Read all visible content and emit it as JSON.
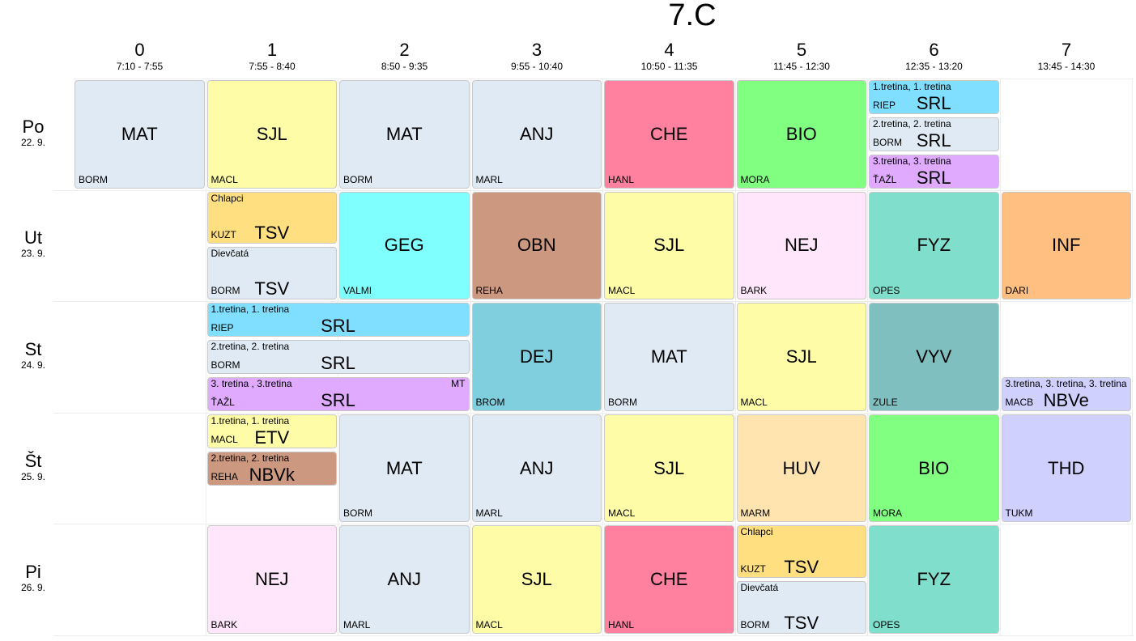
{
  "title": "7.C",
  "periods": [
    {
      "num": "0",
      "time": "7:10 - 7:55"
    },
    {
      "num": "1",
      "time": "7:55 - 8:40"
    },
    {
      "num": "2",
      "time": "8:50 - 9:35"
    },
    {
      "num": "3",
      "time": "9:55 - 10:40"
    },
    {
      "num": "4",
      "time": "10:50 - 11:35"
    },
    {
      "num": "5",
      "time": "11:45 - 12:30"
    },
    {
      "num": "6",
      "time": "12:35 - 13:20"
    },
    {
      "num": "7",
      "time": "13:45 - 14:30"
    }
  ],
  "days": [
    {
      "name": "Po",
      "date": "22. 9."
    },
    {
      "name": "Ut",
      "date": "23. 9."
    },
    {
      "name": "St",
      "date": "24. 9."
    },
    {
      "name": "Št",
      "date": "25. 9."
    },
    {
      "name": "Pi",
      "date": "26. 9."
    }
  ],
  "colors": {
    "MAT": "#dfeaf4",
    "SJL": "#fffca8",
    "ANJ": "#dfeaf4",
    "CHE": "#ff809f",
    "BIO": "#80ff80",
    "SRL_1": "#80dfff",
    "SRL_2": "#dfeaf4",
    "SRL_3": "#dfaaff",
    "TSV_CH": "#ffdf80",
    "TSV_D": "#dfeaf4",
    "GEG": "#80ffff",
    "OBN": "#cc9980",
    "NEJ": "#ffe6fa",
    "FYZ": "#80dfcc",
    "INF": "#ffbf80",
    "DEJ": "#80cfdf",
    "VYV": "#80bfbf",
    "NBVe": "#d0d0ff",
    "ETV": "#fffca8",
    "NBVk": "#cc9980",
    "HUV": "#ffe4b0",
    "THD": "#d0d0ff"
  },
  "lessons": [
    {
      "day": 0,
      "period": 0,
      "span": 1,
      "part": 0,
      "parts": 1,
      "subject": "MAT",
      "teacher": "BORM",
      "color": "#dfeaf4"
    },
    {
      "day": 0,
      "period": 1,
      "span": 1,
      "part": 0,
      "parts": 1,
      "subject": "SJL",
      "teacher": "MACL",
      "color": "#fffca8"
    },
    {
      "day": 0,
      "period": 2,
      "span": 1,
      "part": 0,
      "parts": 1,
      "subject": "MAT",
      "teacher": "BORM",
      "color": "#dfeaf4"
    },
    {
      "day": 0,
      "period": 3,
      "span": 1,
      "part": 0,
      "parts": 1,
      "subject": "ANJ",
      "teacher": "MARL",
      "color": "#dfeaf4"
    },
    {
      "day": 0,
      "period": 4,
      "span": 1,
      "part": 0,
      "parts": 1,
      "subject": "CHE",
      "teacher": "HANL",
      "color": "#ff809f"
    },
    {
      "day": 0,
      "period": 5,
      "span": 1,
      "part": 0,
      "parts": 1,
      "subject": "BIO",
      "teacher": "MORA",
      "color": "#80ff80"
    },
    {
      "day": 0,
      "period": 6,
      "span": 1,
      "part": 0,
      "parts": 3,
      "subject": "SRL",
      "teacher": "RIEP",
      "group": "1.tretina, 1. tretina",
      "color": "#80dfff"
    },
    {
      "day": 0,
      "period": 6,
      "span": 1,
      "part": 1,
      "parts": 3,
      "subject": "SRL",
      "teacher": "BORM",
      "group": "2.tretina, 2. tretina",
      "color": "#dfeaf4"
    },
    {
      "day": 0,
      "period": 6,
      "span": 1,
      "part": 2,
      "parts": 3,
      "subject": "SRL",
      "teacher": "ŤAŽL",
      "group": "3.tretina, 3. tretina",
      "color": "#dfaaff"
    },
    {
      "day": 1,
      "period": 1,
      "span": 1,
      "part": 0,
      "parts": 2,
      "subject": "TSV",
      "teacher": "KUZT",
      "group": "Chlapci",
      "color": "#ffdf80"
    },
    {
      "day": 1,
      "period": 1,
      "span": 1,
      "part": 1,
      "parts": 2,
      "subject": "TSV",
      "teacher": "BORM",
      "group": "Dievčatá",
      "color": "#dfeaf4"
    },
    {
      "day": 1,
      "period": 2,
      "span": 1,
      "part": 0,
      "parts": 1,
      "subject": "GEG",
      "teacher": "VALMI",
      "color": "#80ffff"
    },
    {
      "day": 1,
      "period": 3,
      "span": 1,
      "part": 0,
      "parts": 1,
      "subject": "OBN",
      "teacher": "REHA",
      "color": "#cc9980"
    },
    {
      "day": 1,
      "period": 4,
      "span": 1,
      "part": 0,
      "parts": 1,
      "subject": "SJL",
      "teacher": "MACL",
      "color": "#fffca8"
    },
    {
      "day": 1,
      "period": 5,
      "span": 1,
      "part": 0,
      "parts": 1,
      "subject": "NEJ",
      "teacher": "BARK",
      "color": "#ffe6fa"
    },
    {
      "day": 1,
      "period": 6,
      "span": 1,
      "part": 0,
      "parts": 1,
      "subject": "FYZ",
      "teacher": "OPES",
      "color": "#80dfcc"
    },
    {
      "day": 1,
      "period": 7,
      "span": 1,
      "part": 0,
      "parts": 1,
      "subject": "INF",
      "teacher": "DARI",
      "color": "#ffbf80"
    },
    {
      "day": 2,
      "period": 1,
      "span": 2,
      "part": 0,
      "parts": 3,
      "subject": "SRL",
      "teacher": "RIEP",
      "group": "1.tretina, 1. tretina",
      "color": "#80dfff"
    },
    {
      "day": 2,
      "period": 1,
      "span": 2,
      "part": 1,
      "parts": 3,
      "subject": "SRL",
      "teacher": "BORM",
      "group": "2.tretina, 2. tretina",
      "color": "#dfeaf4"
    },
    {
      "day": 2,
      "period": 1,
      "span": 2,
      "part": 2,
      "parts": 3,
      "subject": "SRL",
      "teacher": "ŤAŽL",
      "group": "3. tretina , 3.tretina",
      "room": "MT",
      "color": "#dfaaff"
    },
    {
      "day": 2,
      "period": 3,
      "span": 1,
      "part": 0,
      "parts": 1,
      "subject": "DEJ",
      "teacher": "BROM",
      "color": "#80cfdf"
    },
    {
      "day": 2,
      "period": 4,
      "span": 1,
      "part": 0,
      "parts": 1,
      "subject": "MAT",
      "teacher": "BORM",
      "color": "#dfeaf4"
    },
    {
      "day": 2,
      "period": 5,
      "span": 1,
      "part": 0,
      "parts": 1,
      "subject": "SJL",
      "teacher": "MACL",
      "color": "#fffca8"
    },
    {
      "day": 2,
      "period": 6,
      "span": 1,
      "part": 0,
      "parts": 1,
      "subject": "VYV",
      "teacher": "ZULE",
      "color": "#80bfbf"
    },
    {
      "day": 2,
      "period": 7,
      "span": 1,
      "part": 2,
      "parts": 3,
      "subject": "NBVe",
      "teacher": "MACB",
      "group": "3.tretina, 3. tretina, 3. tretina",
      "color": "#d0d0ff"
    },
    {
      "day": 3,
      "period": 1,
      "span": 1,
      "part": 0,
      "parts": 3,
      "subject": "ETV",
      "teacher": "MACL",
      "group": "1.tretina, 1. tretina",
      "color": "#fffca8"
    },
    {
      "day": 3,
      "period": 1,
      "span": 1,
      "part": 1,
      "parts": 3,
      "subject": "NBVk",
      "teacher": "REHA",
      "group": "2.tretina, 2. tretina",
      "color": "#cc9980"
    },
    {
      "day": 3,
      "period": 2,
      "span": 1,
      "part": 0,
      "parts": 1,
      "subject": "MAT",
      "teacher": "BORM",
      "color": "#dfeaf4"
    },
    {
      "day": 3,
      "period": 3,
      "span": 1,
      "part": 0,
      "parts": 1,
      "subject": "ANJ",
      "teacher": "MARL",
      "color": "#dfeaf4"
    },
    {
      "day": 3,
      "period": 4,
      "span": 1,
      "part": 0,
      "parts": 1,
      "subject": "SJL",
      "teacher": "MACL",
      "color": "#fffca8"
    },
    {
      "day": 3,
      "period": 5,
      "span": 1,
      "part": 0,
      "parts": 1,
      "subject": "HUV",
      "teacher": "MARM",
      "color": "#ffe4b0"
    },
    {
      "day": 3,
      "period": 6,
      "span": 1,
      "part": 0,
      "parts": 1,
      "subject": "BIO",
      "teacher": "MORA",
      "color": "#80ff80"
    },
    {
      "day": 3,
      "period": 7,
      "span": 1,
      "part": 0,
      "parts": 1,
      "subject": "THD",
      "teacher": "TUKM",
      "color": "#d0d0ff"
    },
    {
      "day": 4,
      "period": 1,
      "span": 1,
      "part": 0,
      "parts": 1,
      "subject": "NEJ",
      "teacher": "BARK",
      "color": "#ffe6fa"
    },
    {
      "day": 4,
      "period": 2,
      "span": 1,
      "part": 0,
      "parts": 1,
      "subject": "ANJ",
      "teacher": "MARL",
      "color": "#dfeaf4"
    },
    {
      "day": 4,
      "period": 3,
      "span": 1,
      "part": 0,
      "parts": 1,
      "subject": "SJL",
      "teacher": "MACL",
      "color": "#fffca8"
    },
    {
      "day": 4,
      "period": 4,
      "span": 1,
      "part": 0,
      "parts": 1,
      "subject": "CHE",
      "teacher": "HANL",
      "color": "#ff809f"
    },
    {
      "day": 4,
      "period": 5,
      "span": 1,
      "part": 0,
      "parts": 2,
      "subject": "TSV",
      "teacher": "KUZT",
      "group": "Chlapci",
      "color": "#ffdf80"
    },
    {
      "day": 4,
      "period": 5,
      "span": 1,
      "part": 1,
      "parts": 2,
      "subject": "TSV",
      "teacher": "BORM",
      "group": "Dievčatá",
      "color": "#dfeaf4"
    },
    {
      "day": 4,
      "period": 6,
      "span": 1,
      "part": 0,
      "parts": 1,
      "subject": "FYZ",
      "teacher": "OPES",
      "color": "#80dfcc"
    }
  ]
}
